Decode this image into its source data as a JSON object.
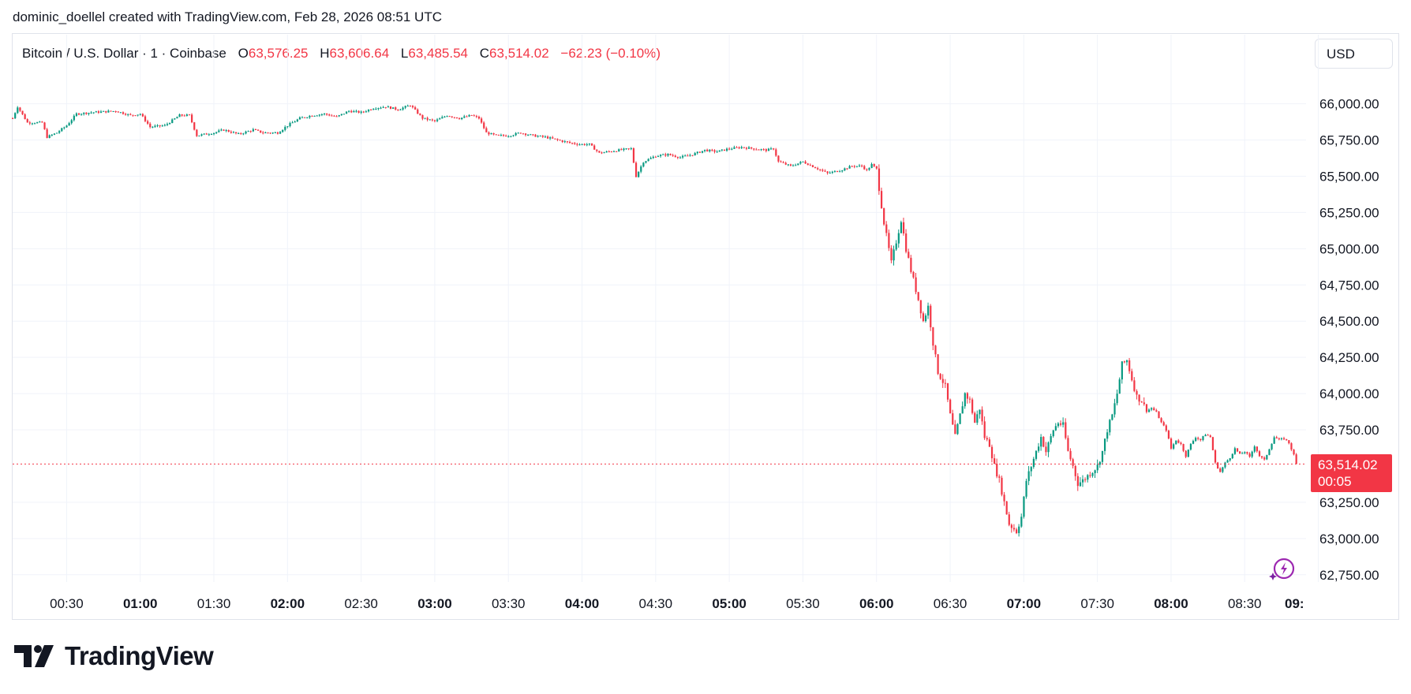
{
  "header": {
    "attribution": "dominic_doellel created with TradingView.com, Feb 28, 2026 08:51 UTC"
  },
  "legend": {
    "symbol": "Bitcoin / U.S. Dollar · 1 · Coinbase",
    "open_label": "O",
    "open": "63,576.25",
    "high_label": "H",
    "high": "63,606.64",
    "low_label": "L",
    "low": "63,485.54",
    "close_label": "C",
    "close": "63,514.02",
    "change": "−62.23 (−0.10%)"
  },
  "currency_button": "USD",
  "last_price": {
    "value": "63,514.02",
    "countdown": "00:05"
  },
  "branding": {
    "logo_text": "TradingView"
  },
  "colors": {
    "up": "#089981",
    "down": "#f23645",
    "grid": "#f0f3fa",
    "text": "#131722"
  },
  "icons": {
    "assistant": "sparkle-bolt-icon",
    "logo": "tradingview-logo-icon"
  },
  "chart_data": {
    "type": "candlestick",
    "interval": "1 minute",
    "title": "Bitcoin / U.S. Dollar · 1 · Coinbase",
    "x_ticks": [
      {
        "label": "00:30",
        "bold": false
      },
      {
        "label": "01:00",
        "bold": true
      },
      {
        "label": "01:30",
        "bold": false
      },
      {
        "label": "02:00",
        "bold": true
      },
      {
        "label": "02:30",
        "bold": false
      },
      {
        "label": "03:00",
        "bold": true
      },
      {
        "label": "03:30",
        "bold": false
      },
      {
        "label": "04:00",
        "bold": true
      },
      {
        "label": "04:30",
        "bold": false
      },
      {
        "label": "05:00",
        "bold": true
      },
      {
        "label": "05:30",
        "bold": false
      },
      {
        "label": "06:00",
        "bold": true
      },
      {
        "label": "06:30",
        "bold": false
      },
      {
        "label": "07:00",
        "bold": true
      },
      {
        "label": "07:30",
        "bold": false
      },
      {
        "label": "08:00",
        "bold": true
      },
      {
        "label": "08:30",
        "bold": false
      },
      {
        "label": "09:",
        "bold": true
      }
    ],
    "x_tick_minutes": [
      30,
      60,
      90,
      120,
      150,
      180,
      210,
      240,
      270,
      300,
      330,
      360,
      390,
      420,
      450,
      480,
      510,
      540
    ],
    "x_range_minutes": [
      8,
      535
    ],
    "y_ticks": [
      "66,000.00",
      "65,750.00",
      "65,500.00",
      "65,250.00",
      "65,000.00",
      "64,750.00",
      "64,500.00",
      "64,250.00",
      "64,000.00",
      "63,750.00",
      "63,250.00",
      "63,000.00",
      "62,750.00"
    ],
    "y_tick_values": [
      66000,
      65750,
      65500,
      65250,
      65000,
      64750,
      64500,
      64250,
      64000,
      63750,
      63250,
      63000,
      62750
    ],
    "ylim": [
      62700,
      66150
    ],
    "last_close": 63514.02,
    "close_path": [
      [
        8,
        65900
      ],
      [
        10,
        65980
      ],
      [
        14,
        65870
      ],
      [
        20,
        65870
      ],
      [
        22,
        65770
      ],
      [
        26,
        65800
      ],
      [
        30,
        65850
      ],
      [
        34,
        65930
      ],
      [
        40,
        65940
      ],
      [
        50,
        65950
      ],
      [
        56,
        65920
      ],
      [
        60,
        65930
      ],
      [
        64,
        65840
      ],
      [
        70,
        65850
      ],
      [
        76,
        65920
      ],
      [
        80,
        65920
      ],
      [
        83,
        65780
      ],
      [
        90,
        65800
      ],
      [
        94,
        65820
      ],
      [
        100,
        65790
      ],
      [
        106,
        65820
      ],
      [
        110,
        65800
      ],
      [
        116,
        65800
      ],
      [
        120,
        65850
      ],
      [
        125,
        65900
      ],
      [
        130,
        65920
      ],
      [
        135,
        65930
      ],
      [
        140,
        65910
      ],
      [
        145,
        65950
      ],
      [
        150,
        65940
      ],
      [
        155,
        65970
      ],
      [
        160,
        65980
      ],
      [
        165,
        65960
      ],
      [
        170,
        65990
      ],
      [
        175,
        65900
      ],
      [
        180,
        65880
      ],
      [
        185,
        65920
      ],
      [
        190,
        65900
      ],
      [
        195,
        65920
      ],
      [
        198,
        65900
      ],
      [
        201,
        65800
      ],
      [
        205,
        65780
      ],
      [
        210,
        65780
      ],
      [
        215,
        65800
      ],
      [
        220,
        65780
      ],
      [
        225,
        65770
      ],
      [
        230,
        65750
      ],
      [
        235,
        65730
      ],
      [
        239,
        65720
      ],
      [
        243,
        65720
      ],
      [
        247,
        65660
      ],
      [
        255,
        65680
      ],
      [
        260,
        65690
      ],
      [
        262,
        65500
      ],
      [
        265,
        65600
      ],
      [
        270,
        65640
      ],
      [
        275,
        65650
      ],
      [
        280,
        65630
      ],
      [
        285,
        65650
      ],
      [
        290,
        65680
      ],
      [
        295,
        65670
      ],
      [
        300,
        65690
      ],
      [
        305,
        65700
      ],
      [
        310,
        65690
      ],
      [
        315,
        65680
      ],
      [
        318,
        65690
      ],
      [
        320,
        65600
      ],
      [
        325,
        65570
      ],
      [
        330,
        65600
      ],
      [
        335,
        65560
      ],
      [
        340,
        65520
      ],
      [
        345,
        65540
      ],
      [
        350,
        65570
      ],
      [
        354,
        65570
      ],
      [
        356,
        65540
      ],
      [
        358,
        65580
      ],
      [
        360,
        65550
      ],
      [
        361,
        65420
      ],
      [
        363,
        65180
      ],
      [
        366,
        64900
      ],
      [
        368,
        65050
      ],
      [
        370,
        65200
      ],
      [
        372,
        65000
      ],
      [
        374,
        64850
      ],
      [
        377,
        64650
      ],
      [
        379,
        64500
      ],
      [
        381,
        64600
      ],
      [
        383,
        64350
      ],
      [
        385,
        64150
      ],
      [
        388,
        64050
      ],
      [
        390,
        63850
      ],
      [
        392,
        63700
      ],
      [
        394,
        63850
      ],
      [
        396,
        64000
      ],
      [
        398,
        63950
      ],
      [
        400,
        63800
      ],
      [
        402,
        63900
      ],
      [
        404,
        63700
      ],
      [
        406,
        63650
      ],
      [
        408,
        63500
      ],
      [
        410,
        63400
      ],
      [
        412,
        63250
      ],
      [
        414,
        63100
      ],
      [
        417,
        63050
      ],
      [
        419,
        63150
      ],
      [
        421,
        63400
      ],
      [
        423,
        63500
      ],
      [
        425,
        63600
      ],
      [
        427,
        63700
      ],
      [
        429,
        63600
      ],
      [
        432,
        63750
      ],
      [
        434,
        63800
      ],
      [
        436,
        63780
      ],
      [
        438,
        63600
      ],
      [
        440,
        63500
      ],
      [
        442,
        63380
      ],
      [
        444,
        63400
      ],
      [
        447,
        63450
      ],
      [
        450,
        63500
      ],
      [
        452,
        63600
      ],
      [
        454,
        63750
      ],
      [
        456,
        63850
      ],
      [
        458,
        64000
      ],
      [
        460,
        64200
      ],
      [
        462,
        64230
      ],
      [
        464,
        64100
      ],
      [
        466,
        63980
      ],
      [
        468,
        63950
      ],
      [
        470,
        63880
      ],
      [
        472,
        63900
      ],
      [
        474,
        63870
      ],
      [
        476,
        63800
      ],
      [
        478,
        63750
      ],
      [
        480,
        63620
      ],
      [
        482,
        63680
      ],
      [
        484,
        63650
      ],
      [
        486,
        63570
      ],
      [
        488,
        63650
      ],
      [
        490,
        63700
      ],
      [
        492,
        63680
      ],
      [
        494,
        63720
      ],
      [
        496,
        63700
      ],
      [
        498,
        63520
      ],
      [
        500,
        63460
      ],
      [
        502,
        63520
      ],
      [
        504,
        63560
      ],
      [
        506,
        63620
      ],
      [
        508,
        63580
      ],
      [
        510,
        63600
      ],
      [
        512,
        63560
      ],
      [
        514,
        63640
      ],
      [
        516,
        63570
      ],
      [
        518,
        63540
      ],
      [
        520,
        63620
      ],
      [
        522,
        63700
      ],
      [
        524,
        63680
      ],
      [
        526,
        63690
      ],
      [
        528,
        63660
      ],
      [
        530,
        63576
      ],
      [
        531,
        63514
      ]
    ]
  }
}
